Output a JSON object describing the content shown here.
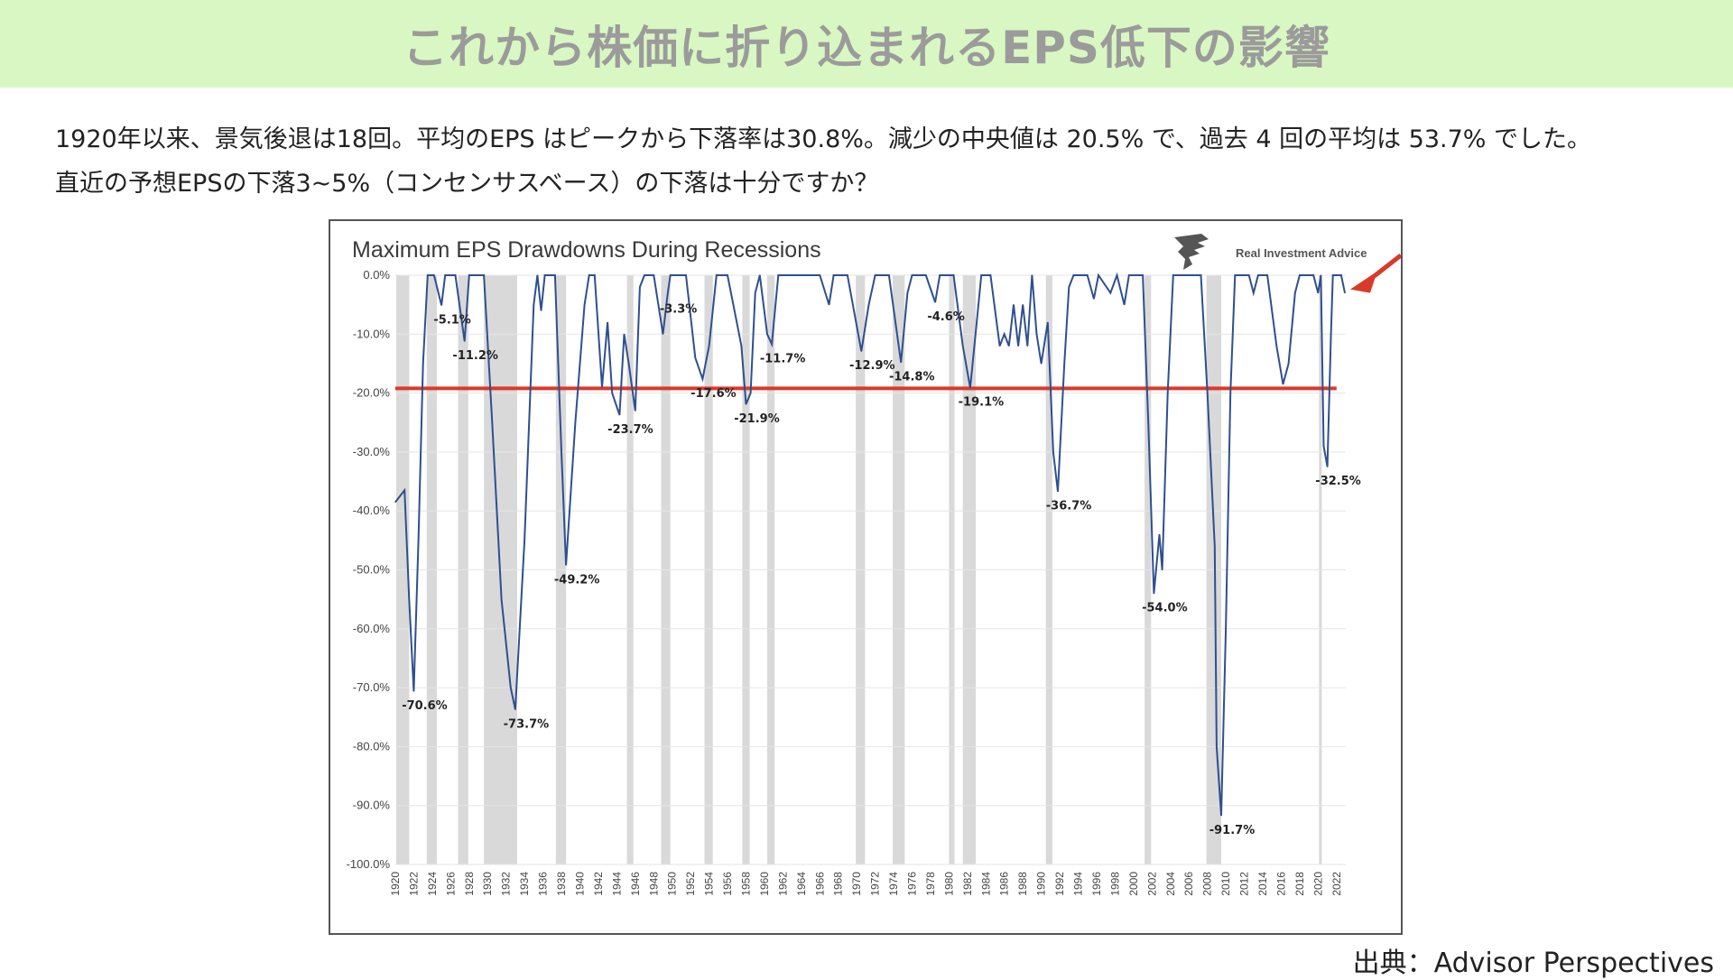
{
  "banner": {
    "title": "これから株価に折り込まれるEPS低下の影響"
  },
  "description": {
    "line1": "1920年以来、景気後退は18回。平均のEPS はピークから下落率は30.8%。減少の中央値は 20.5% で、過去 4 回の平均は 53.7% でした。",
    "line2": "直近の予想EPSの下落3~5%（コンセンサスベース）の下落は十分ですか？"
  },
  "source": "出典：Advisor Perspectives",
  "logo_text": "Real Investment Advice",
  "colors": {
    "banner_bg": "#d9f7c2",
    "line": "#2f4f8f",
    "recession_band": "#d9d9d9",
    "threshold_line": "#d93a2b",
    "arrow": "#d93a2b",
    "grid": "#e6e6e6"
  },
  "chart_data": {
    "type": "line",
    "title": "Maximum EPS Drawdowns During Recessions",
    "xlabel": "",
    "ylabel": "",
    "xlim": [
      1920,
      2023
    ],
    "ylim": [
      -100,
      0
    ],
    "grid": true,
    "y_ticks": [
      "0.0%",
      "-10.0%",
      "-20.0%",
      "-30.0%",
      "-40.0%",
      "-50.0%",
      "-60.0%",
      "-70.0%",
      "-80.0%",
      "-90.0%",
      "-100.0%"
    ],
    "y_tick_values": [
      0,
      -10,
      -20,
      -30,
      -40,
      -50,
      -60,
      -70,
      -80,
      -90,
      -100
    ],
    "x_ticks": [
      "1920",
      "1922",
      "1924",
      "1926",
      "1928",
      "1930",
      "1932",
      "1934",
      "1936",
      "1938",
      "1940",
      "1942",
      "1944",
      "1946",
      "1948",
      "1950",
      "1952",
      "1954",
      "1956",
      "1958",
      "1960",
      "1962",
      "1964",
      "1966",
      "1968",
      "1970",
      "1972",
      "1974",
      "1976",
      "1978",
      "1980",
      "1982",
      "1984",
      "1986",
      "1988",
      "1990",
      "1992",
      "1994",
      "1996",
      "1998",
      "2000",
      "2002",
      "2004",
      "2006",
      "2008",
      "2010",
      "2012",
      "2014",
      "2016",
      "2018",
      "2020",
      "2022"
    ],
    "threshold": -19.2,
    "recessions": [
      [
        1920.1,
        1921.5
      ],
      [
        1923.4,
        1924.5
      ],
      [
        1926.8,
        1927.9
      ],
      [
        1929.6,
        1933.2
      ],
      [
        1937.4,
        1938.5
      ],
      [
        1945.1,
        1945.8
      ],
      [
        1948.8,
        1949.8
      ],
      [
        1953.5,
        1954.4
      ],
      [
        1957.6,
        1958.4
      ],
      [
        1960.3,
        1961.1
      ],
      [
        1969.9,
        1970.9
      ],
      [
        1973.9,
        1975.2
      ],
      [
        1980.0,
        1980.6
      ],
      [
        1981.5,
        1982.9
      ],
      [
        1990.5,
        1991.2
      ],
      [
        2001.2,
        2001.9
      ],
      [
        2007.9,
        2009.5
      ],
      [
        2020.1,
        2020.4
      ]
    ],
    "series": [
      {
        "values": [
          [
            1920.0,
            -38.5
          ],
          [
            1921.0,
            -36.5
          ],
          [
            1921.5,
            -55
          ],
          [
            1922.0,
            -70.6
          ],
          [
            1922.5,
            -45
          ],
          [
            1923.0,
            -15
          ],
          [
            1923.5,
            0
          ],
          [
            1924.2,
            0
          ],
          [
            1925.0,
            -5.1
          ],
          [
            1925.4,
            0
          ],
          [
            1926.5,
            0
          ],
          [
            1927.5,
            -11.2
          ],
          [
            1928.0,
            0
          ],
          [
            1929.6,
            0
          ],
          [
            1930.5,
            -25
          ],
          [
            1931.5,
            -55
          ],
          [
            1932.5,
            -70
          ],
          [
            1933.0,
            -73.7
          ],
          [
            1934.0,
            -45
          ],
          [
            1935.0,
            -5
          ],
          [
            1935.4,
            0
          ],
          [
            1935.8,
            -6
          ],
          [
            1936.2,
            0
          ],
          [
            1937.3,
            0
          ],
          [
            1938.0,
            -30
          ],
          [
            1938.5,
            -49.2
          ],
          [
            1939.5,
            -25
          ],
          [
            1940.5,
            -5
          ],
          [
            1941.0,
            0
          ],
          [
            1941.6,
            0
          ],
          [
            1942.4,
            -19
          ],
          [
            1943.0,
            -8
          ],
          [
            1943.5,
            -20
          ],
          [
            1944.3,
            -23.7
          ],
          [
            1944.8,
            -10
          ],
          [
            1945.3,
            -15
          ],
          [
            1946.0,
            -23
          ],
          [
            1946.5,
            -2
          ],
          [
            1947.0,
            0
          ],
          [
            1948.0,
            0
          ],
          [
            1949.0,
            -10
          ],
          [
            1949.5,
            -3.3
          ],
          [
            1949.8,
            0
          ],
          [
            1951.5,
            0
          ],
          [
            1952.5,
            -14
          ],
          [
            1953.3,
            -17.6
          ],
          [
            1954.0,
            -12
          ],
          [
            1954.8,
            0
          ],
          [
            1956.0,
            0
          ],
          [
            1957.0,
            -8
          ],
          [
            1957.5,
            -12
          ],
          [
            1958.0,
            -21.9
          ],
          [
            1958.5,
            -20
          ],
          [
            1959.0,
            -3
          ],
          [
            1959.5,
            0
          ],
          [
            1960.3,
            -10
          ],
          [
            1960.8,
            -11.7
          ],
          [
            1961.5,
            0
          ],
          [
            1964.0,
            0
          ],
          [
            1966.0,
            0
          ],
          [
            1967.0,
            -5
          ],
          [
            1967.5,
            0
          ],
          [
            1969.0,
            0
          ],
          [
            1970.5,
            -12.9
          ],
          [
            1971.3,
            -5
          ],
          [
            1972.0,
            0
          ],
          [
            1973.5,
            0
          ],
          [
            1974.8,
            -14.8
          ],
          [
            1975.5,
            -3
          ],
          [
            1976.0,
            0
          ],
          [
            1977.5,
            0
          ],
          [
            1978.5,
            -4.6
          ],
          [
            1979.0,
            0
          ],
          [
            1980.5,
            0
          ],
          [
            1981.5,
            -12
          ],
          [
            1982.3,
            -19.1
          ],
          [
            1983.0,
            -8
          ],
          [
            1983.5,
            0
          ],
          [
            1984.5,
            0
          ],
          [
            1985.5,
            -12
          ],
          [
            1986.0,
            -10
          ],
          [
            1986.5,
            -12
          ],
          [
            1987.0,
            -5
          ],
          [
            1987.5,
            -12
          ],
          [
            1988.0,
            -5
          ],
          [
            1988.5,
            -12
          ],
          [
            1989.0,
            0
          ],
          [
            1989.5,
            -10
          ],
          [
            1990.0,
            -15
          ],
          [
            1990.7,
            -8
          ],
          [
            1991.3,
            -30
          ],
          [
            1991.8,
            -36.7
          ],
          [
            1992.5,
            -15
          ],
          [
            1993.0,
            -2
          ],
          [
            1993.5,
            0
          ],
          [
            1995.0,
            0
          ],
          [
            1995.7,
            -4
          ],
          [
            1996.2,
            0
          ],
          [
            1997.5,
            -3
          ],
          [
            1998.2,
            0
          ],
          [
            1999.0,
            -5
          ],
          [
            1999.5,
            0
          ],
          [
            2001.0,
            0
          ],
          [
            2001.6,
            -25
          ],
          [
            2002.2,
            -54.0
          ],
          [
            2002.8,
            -44
          ],
          [
            2003.1,
            -50
          ],
          [
            2003.7,
            -20
          ],
          [
            2004.3,
            0
          ],
          [
            2007.3,
            0
          ],
          [
            2008.0,
            -20
          ],
          [
            2008.8,
            -46
          ],
          [
            2009.0,
            -80
          ],
          [
            2009.5,
            -91.7
          ],
          [
            2010.0,
            -60
          ],
          [
            2010.5,
            -20
          ],
          [
            2011.0,
            0
          ],
          [
            2011.5,
            0
          ],
          [
            2012.5,
            0
          ],
          [
            2013.0,
            -3
          ],
          [
            2013.5,
            0
          ],
          [
            2014.5,
            0
          ],
          [
            2015.5,
            -12
          ],
          [
            2016.2,
            -18.5
          ],
          [
            2016.8,
            -15
          ],
          [
            2017.5,
            -3
          ],
          [
            2018.0,
            0
          ],
          [
            2019.5,
            0
          ],
          [
            2020.0,
            -3
          ],
          [
            2020.3,
            0
          ],
          [
            2020.6,
            -29
          ],
          [
            2021.0,
            -32.5
          ],
          [
            2021.4,
            -10
          ],
          [
            2021.6,
            0
          ],
          [
            2022.5,
            0
          ],
          [
            2022.9,
            -3
          ]
        ]
      }
    ],
    "annotations": [
      {
        "label": "-70.6%",
        "x": 1922.0,
        "y": -70.6
      },
      {
        "label": "-5.1%",
        "x": 1925.0,
        "y": -5.1
      },
      {
        "label": "-11.2%",
        "x": 1927.5,
        "y": -11.2
      },
      {
        "label": "-73.7%",
        "x": 1933.0,
        "y": -73.7
      },
      {
        "label": "-49.2%",
        "x": 1938.5,
        "y": -49.2
      },
      {
        "label": "-23.7%",
        "x": 1944.3,
        "y": -23.7
      },
      {
        "label": "-3.3%",
        "x": 1949.5,
        "y": -3.3
      },
      {
        "label": "-17.6%",
        "x": 1953.3,
        "y": -17.6
      },
      {
        "label": "-21.9%",
        "x": 1958.0,
        "y": -21.9
      },
      {
        "label": "-11.7%",
        "x": 1960.8,
        "y": -11.7
      },
      {
        "label": "-12.9%",
        "x": 1970.5,
        "y": -12.9
      },
      {
        "label": "-14.8%",
        "x": 1974.8,
        "y": -14.8
      },
      {
        "label": "-4.6%",
        "x": 1978.5,
        "y": -4.6
      },
      {
        "label": "-19.1%",
        "x": 1982.3,
        "y": -19.1
      },
      {
        "label": "-36.7%",
        "x": 1991.8,
        "y": -36.7
      },
      {
        "label": "-54.0%",
        "x": 2002.2,
        "y": -54.0
      },
      {
        "label": "-91.7%",
        "x": 2009.5,
        "y": -91.7
      },
      {
        "label": "-32.5%",
        "x": 2021.0,
        "y": -32.5
      }
    ]
  }
}
